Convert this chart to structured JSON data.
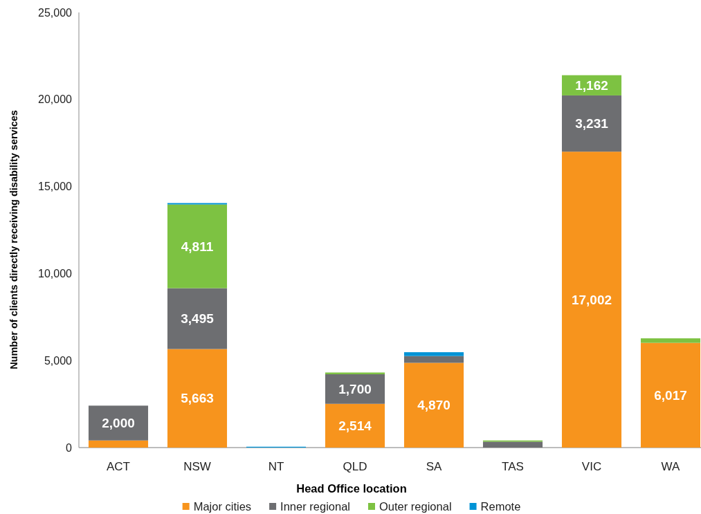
{
  "chart_data": {
    "type": "bar",
    "stacked": true,
    "xlabel": "Head Office location",
    "ylabel": "Number of clients directly receiving disability services",
    "categories": [
      "ACT",
      "NSW",
      "NT",
      "QLD",
      "SA",
      "TAS",
      "VIC",
      "WA"
    ],
    "series": [
      {
        "name": "Major cities",
        "color": "#f7941d",
        "values": [
          410,
          5663,
          null,
          2514,
          4870,
          null,
          17002,
          6017
        ],
        "value_labels": [
          null,
          "5,663",
          null,
          "2,514",
          "4,870",
          null,
          "17,002",
          "6,017"
        ]
      },
      {
        "name": "Inner regional",
        "color": "#6d6e71",
        "values": [
          2000,
          3495,
          null,
          1700,
          390,
          340,
          3231,
          null
        ],
        "value_labels": [
          "2,000",
          "3,495",
          null,
          "1,700",
          null,
          null,
          "3,231",
          null
        ]
      },
      {
        "name": "Outer regional",
        "color": "#7dc242",
        "values": [
          null,
          4811,
          null,
          100,
          null,
          70,
          1162,
          260
        ],
        "value_labels": [
          null,
          "4,811",
          null,
          null,
          null,
          null,
          "1,162",
          null
        ]
      },
      {
        "name": "Remote",
        "color": "#0093d6",
        "values": [
          null,
          80,
          50,
          null,
          220,
          null,
          null,
          null
        ]
      }
    ],
    "ylim": [
      0,
      25000
    ],
    "yticks": [
      0,
      {
        "value": 5000,
        "label": "5,000"
      },
      {
        "value": 10000,
        "label": "10,000"
      },
      {
        "value": 15000,
        "label": "15,000"
      },
      {
        "value": 20000,
        "label": "20,000"
      },
      {
        "value": 25000,
        "label": "25,000"
      }
    ],
    "grid": false,
    "legend": "bottom"
  }
}
